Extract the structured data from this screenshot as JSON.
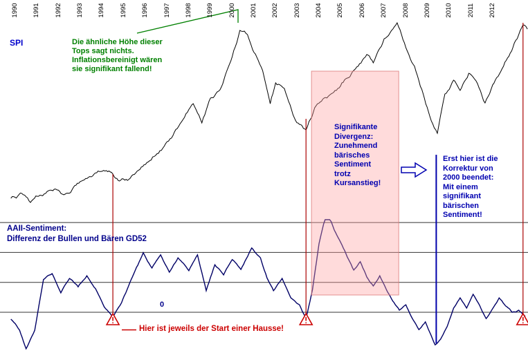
{
  "labels": {
    "spi": "SPI",
    "zero": "0",
    "sentiment_title": "AAII-Sentiment:\nDifferenz der Bullen und Bären GD52"
  },
  "annotations": {
    "tops_note": "Die ähnliche Höhe dieser\nTops sagt nichts.\nInflationsbereinigt wären\nsie signifikant fallend!",
    "divergence_note": "Signifikante\nDivergenz:\nZunehmend\nbärisches\nSentiment\ntrotz\nKursanstieg!",
    "correction_note": "Erst hier ist die\nKorrektur von\n2000 beendet:\nMit einem\nsignifikant\nbärischen\nSentiment!",
    "hausse_note": "Hier ist jeweils der Start einer Hausse!"
  },
  "colors": {
    "spi_line": "#000000",
    "sentiment_line": "#000066",
    "grid_line": "#333333",
    "marker_red": "#aa0000",
    "triangle_red": "#cc0000",
    "marker_blue": "#0000aa",
    "arrow_blue": "#0000b0",
    "connector_green": "#008000",
    "highlight_pink": "rgba(255,160,160,0.38)",
    "highlight_edge": "rgba(220,120,120,0.8)"
  },
  "chart_data": {
    "type": "line",
    "x_range": [
      1989.8,
      2013.6
    ],
    "x_tick_labels": [
      "1990",
      "1991",
      "1992",
      "1993",
      "1994",
      "1995",
      "1996",
      "1997",
      "1998",
      "1999",
      "2000",
      "2001",
      "2002",
      "2003",
      "2004",
      "2005",
      "2006",
      "2007",
      "2008",
      "2009",
      "2010",
      "2011",
      "2012"
    ],
    "panels": [
      {
        "name": "price",
        "series_label": "SPI",
        "ylim": [
          0,
          100
        ],
        "y_axis_shown": false,
        "points": [
          [
            1989.8,
            4.7
          ],
          [
            1990.3,
            7.3
          ],
          [
            1990.7,
            2.5
          ],
          [
            1991.2,
            6.2
          ],
          [
            1991.8,
            9.5
          ],
          [
            1992.3,
            6.9
          ],
          [
            1992.8,
            11.6
          ],
          [
            1993.5,
            16.0
          ],
          [
            1994.2,
            19.3
          ],
          [
            1994.5,
            17.5
          ],
          [
            1994.8,
            13.8
          ],
          [
            1995.3,
            15.3
          ],
          [
            1996.0,
            22.5
          ],
          [
            1996.6,
            28.4
          ],
          [
            1997.2,
            36.4
          ],
          [
            1997.8,
            47.3
          ],
          [
            1998.2,
            54.5
          ],
          [
            1998.6,
            44.4
          ],
          [
            1999.0,
            57.5
          ],
          [
            1999.5,
            63.3
          ],
          [
            2000.0,
            79.3
          ],
          [
            2000.35,
            93.1
          ],
          [
            2000.7,
            90.9
          ],
          [
            2001.0,
            81.5
          ],
          [
            2001.4,
            72.0
          ],
          [
            2001.75,
            54.5
          ],
          [
            2002.0,
            65.5
          ],
          [
            2002.4,
            62.5
          ],
          [
            2002.8,
            48.7
          ],
          [
            2003.1,
            43.6
          ],
          [
            2003.4,
            40.7
          ],
          [
            2003.8,
            52.4
          ],
          [
            2004.3,
            57.8
          ],
          [
            2004.8,
            61.5
          ],
          [
            2005.3,
            68.0
          ],
          [
            2005.8,
            74.2
          ],
          [
            2006.2,
            80.4
          ],
          [
            2006.5,
            76.0
          ],
          [
            2007.0,
            88.7
          ],
          [
            2007.6,
            97.1
          ],
          [
            2008.0,
            84.0
          ],
          [
            2008.4,
            74.2
          ],
          [
            2008.8,
            59.6
          ],
          [
            2009.1,
            48.0
          ],
          [
            2009.45,
            38.9
          ],
          [
            2009.8,
            59.6
          ],
          [
            2010.2,
            66.9
          ],
          [
            2010.5,
            61.5
          ],
          [
            2010.9,
            70.5
          ],
          [
            2011.3,
            65.1
          ],
          [
            2011.65,
            54.9
          ],
          [
            2012.0,
            64.4
          ],
          [
            2012.5,
            74.2
          ],
          [
            2013.0,
            86.5
          ],
          [
            2013.4,
            96.0
          ],
          [
            2013.6,
            93.8
          ]
        ]
      },
      {
        "name": "sentiment",
        "series_label": "AAII-Sentiment: Differenz der Bullen und Bären GD52",
        "gridline_values": [
          30,
          20,
          10,
          0
        ],
        "zero_label": "0",
        "points": [
          [
            1989.8,
            -2.3
          ],
          [
            1990.2,
            -6.0
          ],
          [
            1990.5,
            -12.2
          ],
          [
            1990.9,
            -6.0
          ],
          [
            1991.3,
            10.9
          ],
          [
            1991.7,
            12.9
          ],
          [
            1992.1,
            6.5
          ],
          [
            1992.5,
            11.3
          ],
          [
            1992.9,
            8.5
          ],
          [
            1993.3,
            12.2
          ],
          [
            1993.7,
            7.9
          ],
          [
            1994.1,
            1.8
          ],
          [
            1994.5,
            -1.6
          ],
          [
            1994.9,
            3.2
          ],
          [
            1995.4,
            11.8
          ],
          [
            1995.9,
            19.9
          ],
          [
            1996.3,
            14.8
          ],
          [
            1996.7,
            19.2
          ],
          [
            1997.1,
            13.4
          ],
          [
            1997.5,
            18.2
          ],
          [
            1998.0,
            13.9
          ],
          [
            1998.4,
            19.2
          ],
          [
            1998.8,
            7.2
          ],
          [
            1999.2,
            15.9
          ],
          [
            1999.6,
            12.5
          ],
          [
            2000.0,
            17.6
          ],
          [
            2000.4,
            14.3
          ],
          [
            2000.9,
            21.5
          ],
          [
            2001.3,
            18.2
          ],
          [
            2001.6,
            11.5
          ],
          [
            2001.9,
            7.2
          ],
          [
            2002.3,
            11.3
          ],
          [
            2002.7,
            4.8
          ],
          [
            2003.1,
            2.5
          ],
          [
            2003.4,
            -2.1
          ],
          [
            2003.7,
            7.6
          ],
          [
            2004.0,
            22.9
          ],
          [
            2004.35,
            33.7
          ],
          [
            2004.7,
            27.5
          ],
          [
            2005.0,
            23.3
          ],
          [
            2005.3,
            18.5
          ],
          [
            2005.6,
            14.1
          ],
          [
            2005.9,
            16.9
          ],
          [
            2006.2,
            11.8
          ],
          [
            2006.5,
            8.8
          ],
          [
            2006.8,
            12.2
          ],
          [
            2007.1,
            7.6
          ],
          [
            2007.4,
            3.7
          ],
          [
            2007.7,
            0.7
          ],
          [
            2008.0,
            2.5
          ],
          [
            2008.3,
            -2.1
          ],
          [
            2008.6,
            -5.8
          ],
          [
            2008.9,
            -3.2
          ],
          [
            2009.1,
            -6.7
          ],
          [
            2009.35,
            -10.9
          ],
          [
            2009.6,
            -9.0
          ],
          [
            2009.9,
            -4.8
          ],
          [
            2010.2,
            1.4
          ],
          [
            2010.5,
            4.8
          ],
          [
            2010.8,
            1.4
          ],
          [
            2011.1,
            6.0
          ],
          [
            2011.4,
            2.3
          ],
          [
            2011.7,
            -2.1
          ],
          [
            2012.0,
            1.2
          ],
          [
            2012.3,
            4.8
          ],
          [
            2012.6,
            2.1
          ],
          [
            2012.9,
            0.0
          ],
          [
            2013.2,
            0.7
          ],
          [
            2013.5,
            -1.4
          ]
        ]
      }
    ],
    "markers": {
      "hausse_start_years": [
        1994.5,
        2003.4,
        2013.4
      ],
      "correction_end_year": 2009.4,
      "divergence_region_years": [
        2003.65,
        2007.67
      ]
    }
  }
}
